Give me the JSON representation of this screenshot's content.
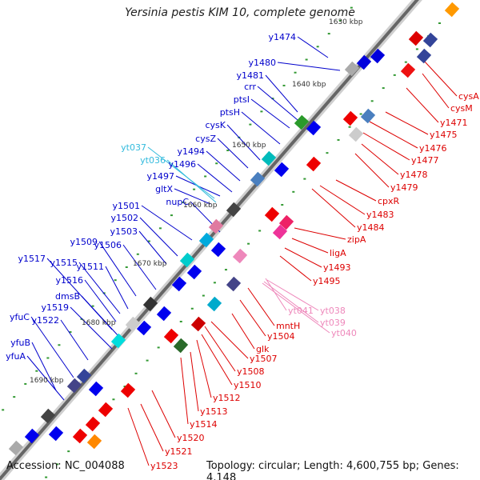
{
  "title": "Yersinia pestis KIM 10, complete genome",
  "footer": {
    "accession": "Accession: NC_004088",
    "topology": "Topology: circular; Length: 4,600,755 bp; Genes: 4,148"
  },
  "colors": {
    "plus_label": "#0000cc",
    "minus_label": "#dd0000",
    "trna_label": "#33bbdd",
    "rrna_label": "#ee88bb",
    "backbone": "#888888"
  },
  "ruler": [
    "1630 kbp",
    "1640 kbp",
    "1650 kbp",
    "1660 kbp",
    "1670 kbp",
    "1680 kbp",
    "1690 kbp"
  ],
  "plus_genes": [
    "y1474",
    "y1480",
    "y1481",
    "crr",
    "ptsI",
    "ptsH",
    "cysK",
    "cysZ",
    "y1494",
    "y1496",
    "y1497",
    "gltX",
    "nupC",
    "y1501",
    "y1502",
    "y1503",
    "y1506",
    "y1509",
    "y1511",
    "y1515",
    "y1517",
    "y1516",
    "dmsB",
    "y1519",
    "y1522",
    "yfuC",
    "yfuB",
    "yfuA"
  ],
  "trna_genes": [
    "yt037",
    "yt036"
  ],
  "minus_genes": [
    "cysA",
    "cysM",
    "y1471",
    "y1475",
    "y1476",
    "y1477",
    "y1478",
    "y1479",
    "cpxR",
    "y1483",
    "y1484",
    "zipA",
    "ligA",
    "y1493",
    "y1495",
    "mntH",
    "y1504",
    "glk",
    "y1507",
    "y1508",
    "y1510",
    "y1512",
    "y1513",
    "y1514",
    "y1520",
    "y1521",
    "y1523"
  ],
  "rrna_genes": [
    "yt041",
    "yt038",
    "yt039",
    "yt040"
  ]
}
